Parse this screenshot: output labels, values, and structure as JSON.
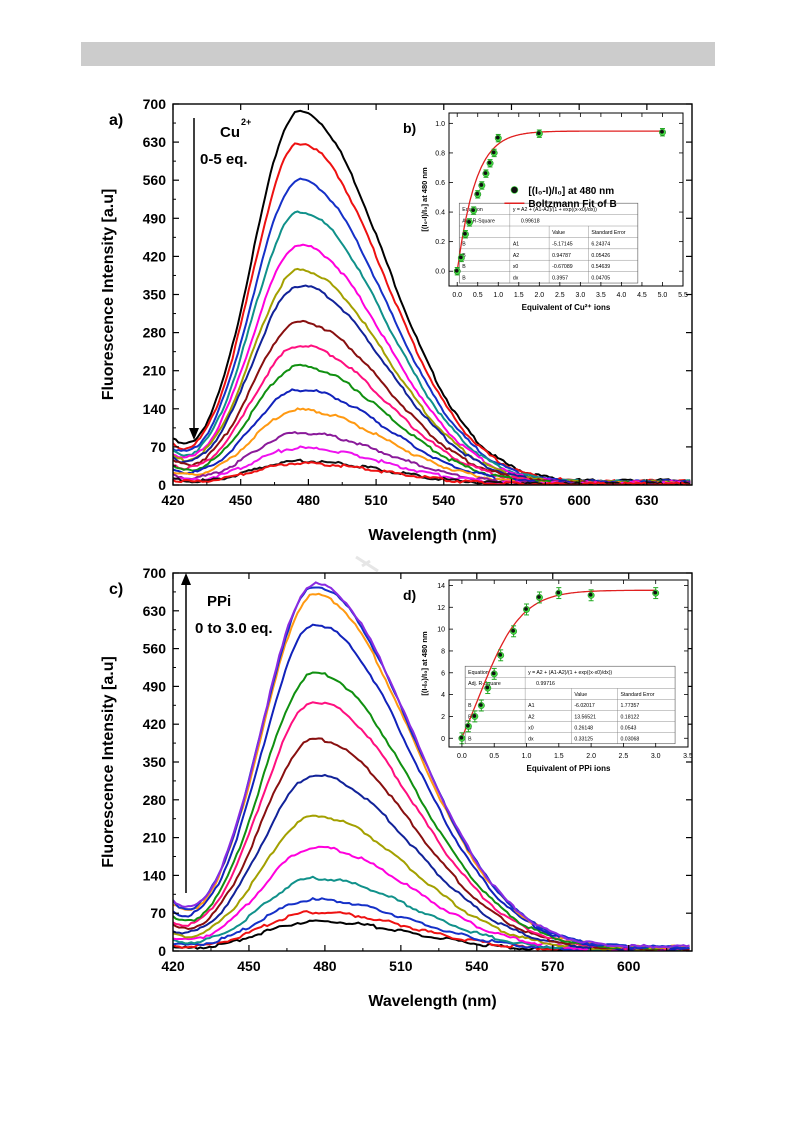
{
  "chart_data": [
    {
      "panel": "a",
      "type": "line",
      "panel_label": "a)",
      "xlabel": "Wavelength (nm)",
      "ylabel": "Fluorescence Intensity [a.u]",
      "xlim": [
        420,
        650
      ],
      "ylim": [
        0,
        700
      ],
      "x_ticks": [
        420,
        450,
        480,
        510,
        540,
        570,
        600,
        630
      ],
      "y_ticks": [
        0,
        70,
        140,
        210,
        280,
        350,
        420,
        490,
        560,
        630,
        700
      ],
      "annotation": {
        "ion": "Cu",
        "charge": "2+",
        "range": "0-5 eq.",
        "direction": "down"
      },
      "peak_nm": 476,
      "series": [
        {
          "peak": 686,
          "base": 68,
          "tail": 8,
          "color": "#000000"
        },
        {
          "peak": 628,
          "base": 60,
          "tail": 7,
          "color": "#ee1111"
        },
        {
          "peak": 560,
          "base": 55,
          "tail": 6,
          "color": "#1530c8"
        },
        {
          "peak": 502,
          "base": 50,
          "tail": 6,
          "color": "#10918a"
        },
        {
          "peak": 441,
          "base": 47,
          "tail": 5,
          "color": "#ff00dd"
        },
        {
          "peak": 395,
          "base": 44,
          "tail": 5,
          "color": "#a3a000"
        },
        {
          "peak": 366,
          "base": 42,
          "tail": 5,
          "color": "#112299"
        },
        {
          "peak": 300,
          "base": 38,
          "tail": 4,
          "color": "#880f0f"
        },
        {
          "peak": 256,
          "base": 32,
          "tail": 4,
          "color": "#ff0f7f"
        },
        {
          "peak": 218,
          "base": 28,
          "tail": 4,
          "color": "#109010"
        },
        {
          "peak": 175,
          "base": 25,
          "tail": 4,
          "color": "#1122bb"
        },
        {
          "peak": 138,
          "base": 20,
          "tail": 3,
          "color": "#ff9911"
        },
        {
          "peak": 96,
          "base": 16,
          "tail": 3,
          "color": "#8a1a9a"
        },
        {
          "peak": 68,
          "base": 12,
          "tail": 3,
          "color": "#ee11ee"
        },
        {
          "peak": 44,
          "base": 10,
          "tail": 2,
          "color": "#111111"
        },
        {
          "peak": 40,
          "base": 9,
          "tail": 2,
          "color": "#ee1111"
        }
      ],
      "inset": {
        "panel_label": "b)",
        "xlabel": "Equivalent of Cu²⁺ ions",
        "ylabel": "[(I₀-I)/I₀] at 480 nm",
        "xlim": [
          -0.2,
          5.5
        ],
        "ylim": [
          -0.1,
          1.07
        ],
        "x_ticks": [
          "0.0",
          "0.5",
          "1.0",
          "1.5",
          "2.0",
          "2.5",
          "3.0",
          "3.5",
          "4.0",
          "4.5",
          "5.0",
          "5.5"
        ],
        "y_ticks": [
          "0.0",
          "0.2",
          "0.4",
          "0.6",
          "0.8",
          "1.0"
        ],
        "x": [
          0,
          0.1,
          0.2,
          0.3,
          0.4,
          0.5,
          0.6,
          0.7,
          0.8,
          0.9,
          1.0,
          2.0,
          5.0
        ],
        "y": [
          0.0,
          0.09,
          0.25,
          0.33,
          0.41,
          0.52,
          0.58,
          0.66,
          0.73,
          0.8,
          0.9,
          0.93,
          0.94
        ],
        "fit": {
          "A1": -5.17145,
          "A2": 0.94787,
          "x0": -0.67089,
          "dx": 0.3957
        },
        "legend": [
          "[(I₀-I)/I₀] at 480 nm",
          "Boltzmann Fit of B"
        ],
        "table": {
          "equation_label": "Equation",
          "equation": "y = A2 + (A1-A2)/(1 + exp((x-x0)/dx))",
          "adj_label": "Adj. R-Square",
          "adj_value": "0.99618",
          "col_value": "Value",
          "col_error": "Standard Error",
          "rows": [
            [
              "B",
              "A1",
              "-5.17145",
              "6.24374"
            ],
            [
              "B",
              "A2",
              "0.94787",
              "0.05426"
            ],
            [
              "B",
              "x0",
              "-0.67089",
              "0.54639"
            ],
            [
              "B",
              "dx",
              "0.3957",
              "0.04705"
            ]
          ]
        }
      }
    },
    {
      "panel": "c",
      "type": "line",
      "panel_label": "c)",
      "xlabel": "Wavelength (nm)",
      "ylabel": "Fluorescence Intensity [a.u]",
      "xlim": [
        420,
        625
      ],
      "ylim": [
        0,
        700
      ],
      "x_ticks": [
        420,
        450,
        480,
        510,
        540,
        570,
        600
      ],
      "y_ticks": [
        0,
        70,
        140,
        210,
        280,
        350,
        420,
        490,
        560,
        630,
        700
      ],
      "annotation": {
        "ion": "PPi",
        "range": "0 to 3.0 eq.",
        "direction": "up"
      },
      "peak_nm": 476,
      "series": [
        {
          "peak": 55,
          "base": 5,
          "tail": 2,
          "color": "#000000"
        },
        {
          "peak": 72,
          "base": 8,
          "tail": 2,
          "color": "#ee1111"
        },
        {
          "peak": 95,
          "base": 12,
          "tail": 3,
          "color": "#1530c8"
        },
        {
          "peak": 135,
          "base": 16,
          "tail": 3,
          "color": "#10918a"
        },
        {
          "peak": 192,
          "base": 20,
          "tail": 4,
          "color": "#ff00dd"
        },
        {
          "peak": 250,
          "base": 25,
          "tail": 4,
          "color": "#a3a000"
        },
        {
          "peak": 325,
          "base": 30,
          "tail": 5,
          "color": "#112299"
        },
        {
          "peak": 392,
          "base": 36,
          "tail": 5,
          "color": "#880f0f"
        },
        {
          "peak": 462,
          "base": 42,
          "tail": 6,
          "color": "#ff0f7f"
        },
        {
          "peak": 515,
          "base": 48,
          "tail": 6,
          "color": "#109010"
        },
        {
          "peak": 605,
          "base": 60,
          "tail": 7,
          "color": "#1122bb"
        },
        {
          "peak": 660,
          "base": 70,
          "tail": 8,
          "color": "#ff9911"
        },
        {
          "peak": 675,
          "base": 75,
          "tail": 8,
          "color": "#1530c8"
        },
        {
          "peak": 680,
          "base": 78,
          "tail": 9,
          "color": "#8a2be2"
        }
      ],
      "inset": {
        "panel_label": "d)",
        "xlabel": "Equivalent of PPi ions",
        "ylabel": "[(I-I₀)/I₀] at 480 nm",
        "xlim": [
          -0.2,
          3.5
        ],
        "ylim": [
          -0.8,
          14.5
        ],
        "x_ticks": [
          "0.0",
          "0.5",
          "1.0",
          "1.5",
          "2.0",
          "2.5",
          "3.0",
          "3.5"
        ],
        "y_ticks": [
          "0",
          "2",
          "4",
          "6",
          "8",
          "10",
          "12",
          "14"
        ],
        "x": [
          0,
          0.1,
          0.2,
          0.3,
          0.4,
          0.5,
          0.6,
          0.8,
          1.0,
          1.2,
          1.5,
          2.0,
          3.0
        ],
        "y": [
          0.0,
          1.1,
          2.0,
          3.0,
          4.6,
          5.9,
          7.6,
          9.8,
          11.8,
          12.9,
          13.3,
          13.1,
          13.3
        ],
        "fit": {
          "A1": -6.02017,
          "A2": 13.56521,
          "x0": 0.26148,
          "dx": 0.33125
        },
        "table": {
          "equation_label": "Equation",
          "equation": "y = A2 + (A1-A2)/(1 + exp((x-x0)/dx))",
          "adj_label": "Adj. R-Square",
          "adj_value": "0.99716",
          "col_value": "Value",
          "col_error": "Standard Error",
          "rows": [
            [
              "B",
              "A1",
              "-6.02017",
              "1.77357"
            ],
            [
              "B",
              "A2",
              "13.56521",
              "0.18122"
            ],
            [
              "B",
              "x0",
              "0.26148",
              "0.0543"
            ],
            [
              "B",
              "dx",
              "0.33125",
              "0.03068"
            ]
          ]
        }
      }
    }
  ]
}
